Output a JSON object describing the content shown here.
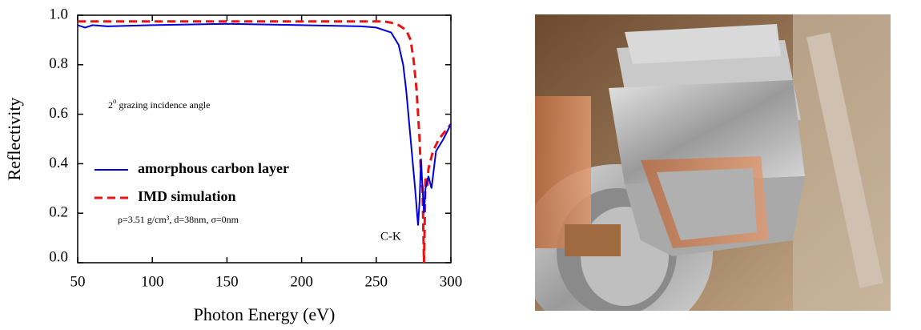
{
  "chart_data": {
    "type": "line",
    "xlabel": "Photon Energy (eV)",
    "ylabel": "Reflectivity",
    "xlim": [
      50,
      300
    ],
    "xticks": [
      50,
      100,
      150,
      200,
      250,
      300
    ],
    "ylim": [
      0,
      1
    ],
    "yticks": [
      {
        "value": 0,
        "label": "0.0"
      },
      0.2,
      0.4,
      0.6,
      0.8,
      {
        "value": 1,
        "label": "1.0"
      }
    ],
    "annotation": {
      "main": "2",
      "sup": "o",
      "rest": " grazing incidence angle"
    },
    "parameters": "ρ=3.51 g/cm³, d=38nm, σ=0nm",
    "edge_label": "C-K",
    "series": [
      {
        "name": "amorphous carbon layer",
        "color": "#0000dd",
        "dash": false,
        "x": [
          50,
          55,
          60,
          70,
          100,
          150,
          200,
          240,
          250,
          260,
          265,
          268,
          270,
          273,
          276,
          278,
          279,
          280,
          281,
          282,
          283,
          285,
          287,
          290,
          295,
          300
        ],
        "values": [
          0.96,
          0.95,
          0.96,
          0.955,
          0.96,
          0.965,
          0.96,
          0.955,
          0.95,
          0.93,
          0.88,
          0.8,
          0.7,
          0.5,
          0.3,
          0.15,
          0.25,
          0.42,
          0.3,
          0.2,
          0.3,
          0.35,
          0.3,
          0.45,
          0.5,
          0.56
        ]
      },
      {
        "name": "IMD simulation",
        "color": "#ee1111",
        "dash": true,
        "x": [
          50,
          100,
          150,
          200,
          250,
          255,
          260,
          265,
          270,
          273,
          275,
          277,
          279,
          280,
          281,
          282,
          283,
          284,
          285,
          288,
          292,
          300
        ],
        "values": [
          0.975,
          0.975,
          0.975,
          0.975,
          0.975,
          0.975,
          0.97,
          0.96,
          0.94,
          0.9,
          0.82,
          0.7,
          0.5,
          0.35,
          0.3,
          0,
          0.35,
          0.3,
          0.38,
          0.45,
          0.5,
          0.56
        ]
      }
    ]
  }
}
